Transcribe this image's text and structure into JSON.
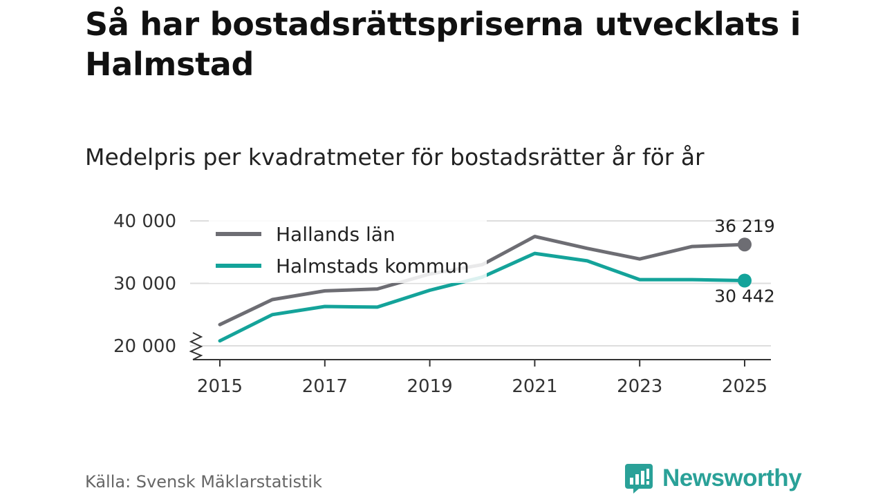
{
  "title": "Så har bostadsrättspriserna utvecklats i Halmstad",
  "subtitle": "Medelpris per kvadratmeter för bostadsrätter år för år",
  "source": "Källa: Svensk Mäklarstatistik",
  "brand": {
    "name": "Newsworthy",
    "color": "#2aa198",
    "icon": "bar-chart-speech-bubble-icon"
  },
  "colors": {
    "grid": "#dddddd",
    "axis": "#333333",
    "text": "#333333"
  },
  "chart_data": {
    "type": "line",
    "title": "Så har bostadsrättspriserna utvecklats i Halmstad",
    "subtitle": "Medelpris per kvadratmeter för bostadsrätter år för år",
    "xlabel": "",
    "ylabel": "",
    "xlim": [
      2015,
      2025
    ],
    "ylim": [
      20000,
      40000
    ],
    "y_axis_break": true,
    "grid": true,
    "legend_position": "top-left",
    "x": [
      2015,
      2016,
      2017,
      2018,
      2019,
      2020,
      2021,
      2022,
      2023,
      2024,
      2025
    ],
    "x_ticks": [
      2015,
      2017,
      2019,
      2021,
      2023,
      2025
    ],
    "x_tick_labels": [
      "2015",
      "2017",
      "2019",
      "2021",
      "2023",
      "2025"
    ],
    "y_ticks": [
      20000,
      30000,
      40000
    ],
    "y_tick_labels": [
      "20 000",
      "30 000",
      "40 000"
    ],
    "series": [
      {
        "name": "Hallands län",
        "color": "#6d6d73",
        "values": [
          23400,
          27400,
          28800,
          29100,
          31500,
          33000,
          37500,
          35600,
          33900,
          35900,
          36219
        ],
        "end_label": "36 219",
        "end_label_position": "above"
      },
      {
        "name": "Halmstads kommun",
        "color": "#14a39a",
        "values": [
          20800,
          25000,
          26300,
          26200,
          28900,
          31000,
          34800,
          33600,
          30600,
          30600,
          30442
        ],
        "end_label": "30 442",
        "end_label_position": "below"
      }
    ]
  }
}
